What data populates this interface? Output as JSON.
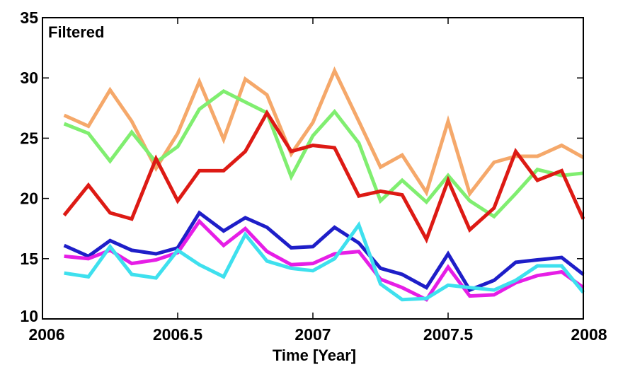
{
  "chart_data": {
    "type": "line",
    "annotation": "Filtered",
    "xlabel": "Time [Year]",
    "ylabel": "",
    "xlim": [
      2006,
      2008
    ],
    "ylim": [
      10,
      35
    ],
    "xticks": [
      2006,
      2006.5,
      2007,
      2007.5,
      2008
    ],
    "xtick_labels": [
      "2006",
      "2006.5",
      "2007",
      "2007.5",
      "2008"
    ],
    "yticks": [
      10,
      15,
      20,
      25,
      30,
      35
    ],
    "ytick_labels": [
      "10",
      "15",
      "20",
      "25",
      "30",
      "35"
    ],
    "grid": false,
    "x": [
      2006.08,
      2006.17,
      2006.25,
      2006.33,
      2006.42,
      2006.5,
      2006.58,
      2006.67,
      2006.75,
      2006.83,
      2006.92,
      2007.0,
      2007.08,
      2007.17,
      2007.25,
      2007.33,
      2007.42,
      2007.5,
      2007.58,
      2007.67,
      2007.75,
      2007.83,
      2007.92,
      2008.0
    ],
    "series": [
      {
        "color": "#f5a86a",
        "values": [
          26.9,
          26.0,
          29.0,
          26.4,
          22.5,
          25.4,
          29.7,
          24.9,
          29.9,
          28.6,
          23.7,
          26.3,
          30.6,
          26.4,
          22.6,
          23.6,
          20.5,
          26.4,
          20.4,
          23.0,
          23.5,
          23.5,
          24.4,
          23.4
        ]
      },
      {
        "color": "#80ee70",
        "values": [
          26.2,
          25.4,
          23.1,
          25.5,
          23.0,
          24.3,
          27.4,
          28.9,
          28.0,
          27.1,
          21.8,
          25.2,
          27.2,
          24.6,
          19.8,
          21.5,
          19.7,
          21.9,
          19.8,
          18.5,
          20.4,
          22.4,
          21.9,
          22.1
        ]
      },
      {
        "color": "#dd1a14",
        "values": [
          18.6,
          21.1,
          18.8,
          18.3,
          23.3,
          19.8,
          22.3,
          22.3,
          23.9,
          27.1,
          23.9,
          24.4,
          24.2,
          20.2,
          20.6,
          20.3,
          16.6,
          21.5,
          17.4,
          19.2,
          23.9,
          21.5,
          22.3,
          18.3
        ]
      },
      {
        "color": "#1e1ec8",
        "values": [
          16.1,
          15.2,
          16.5,
          15.7,
          15.4,
          15.9,
          18.8,
          17.3,
          18.4,
          17.6,
          15.9,
          16.0,
          17.6,
          16.3,
          14.2,
          13.7,
          12.6,
          15.4,
          12.4,
          13.2,
          14.7,
          14.9,
          15.1,
          13.7
        ]
      },
      {
        "color": "#e61ee6",
        "values": [
          15.2,
          15.0,
          15.7,
          14.6,
          14.9,
          15.5,
          18.1,
          16.1,
          17.5,
          15.6,
          14.5,
          14.6,
          15.4,
          15.6,
          13.3,
          12.6,
          11.6,
          14.3,
          11.9,
          12.0,
          13.0,
          13.6,
          13.9,
          12.6
        ]
      },
      {
        "color": "#3ee0ee",
        "values": [
          13.8,
          13.5,
          16.0,
          13.7,
          13.4,
          15.7,
          14.5,
          13.5,
          17.0,
          14.8,
          14.2,
          14.0,
          15.0,
          17.8,
          12.9,
          11.6,
          11.7,
          12.8,
          12.6,
          12.4,
          13.2,
          14.4,
          14.4,
          12.2
        ]
      }
    ]
  }
}
